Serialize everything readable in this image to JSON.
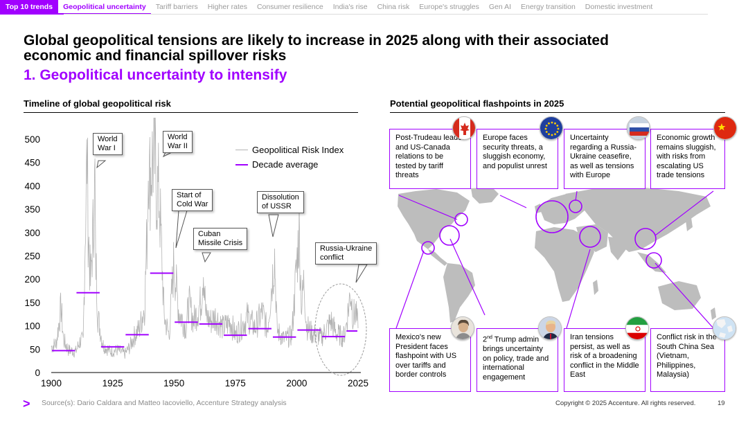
{
  "nav": {
    "items": [
      "Top 10 trends",
      "Geopolitical uncertainty",
      "Tariff barriers",
      "Higher rates",
      "Consumer resilience",
      "India's rise",
      "China risk",
      "Europe's struggles",
      "Gen AI",
      "Energy transition",
      "Domestic investment"
    ],
    "active": "Geopolitical uncertainty"
  },
  "header": {
    "title": "Global geopolitical tensions are likely to increase in 2025 along with their associated economic and financial spillover risks",
    "subtitle": "1. Geopolitical uncertainty to intensify"
  },
  "left_section": {
    "heading": "Timeline of global geopolitical risk"
  },
  "right_section": {
    "heading": "Potential geopolitical flashpoints in 2025"
  },
  "colors": {
    "accent": "#a100ff",
    "series_line": "#b3b3b3",
    "text": "#000000"
  },
  "chart_data": {
    "type": "line",
    "xlim": [
      1900,
      2025
    ],
    "ylim": [
      0,
      500
    ],
    "x_ticks": [
      "1900",
      "1925",
      "1950",
      "1975",
      "2000",
      "2025"
    ],
    "y_ticks": [
      "0",
      "50",
      "100",
      "150",
      "200",
      "250",
      "300",
      "350",
      "400",
      "450",
      "500"
    ],
    "series": [
      {
        "name": "Geopolitical Risk Index",
        "points": [
          [
            1900,
            55
          ],
          [
            1902,
            62
          ],
          [
            1904,
            140
          ],
          [
            1905,
            70
          ],
          [
            1907,
            48
          ],
          [
            1910,
            45
          ],
          [
            1912,
            70
          ],
          [
            1913,
            65
          ],
          [
            1914,
            340
          ],
          [
            1914.6,
            470
          ],
          [
            1915,
            320
          ],
          [
            1916,
            190
          ],
          [
            1917,
            300
          ],
          [
            1917.8,
            410
          ],
          [
            1918,
            260
          ],
          [
            1919,
            120
          ],
          [
            1921,
            60
          ],
          [
            1924,
            45
          ],
          [
            1927,
            48
          ],
          [
            1930,
            40
          ],
          [
            1932,
            55
          ],
          [
            1934,
            80
          ],
          [
            1936,
            95
          ],
          [
            1938,
            140
          ],
          [
            1939,
            290
          ],
          [
            1939.7,
            490
          ],
          [
            1940,
            410
          ],
          [
            1941,
            450
          ],
          [
            1942,
            470
          ],
          [
            1943,
            395
          ],
          [
            1944,
            380
          ],
          [
            1945,
            250
          ],
          [
            1946,
            120
          ],
          [
            1948,
            80
          ],
          [
            1950,
            240
          ],
          [
            1951,
            180
          ],
          [
            1952,
            130
          ],
          [
            1955,
            95
          ],
          [
            1956,
            150
          ],
          [
            1958,
            110
          ],
          [
            1961,
            150
          ],
          [
            1962,
            228
          ],
          [
            1963,
            120
          ],
          [
            1965,
            110
          ],
          [
            1967,
            120
          ],
          [
            1970,
            95
          ],
          [
            1973,
            110
          ],
          [
            1975,
            80
          ],
          [
            1979,
            110
          ],
          [
            1980,
            120
          ],
          [
            1983,
            95
          ],
          [
            1986,
            130
          ],
          [
            1988,
            90
          ],
          [
            1990,
            200
          ],
          [
            1991,
            252
          ],
          [
            1992,
            90
          ],
          [
            1995,
            70
          ],
          [
            1998,
            80
          ],
          [
            2001,
            305
          ],
          [
            2002,
            140
          ],
          [
            2003,
            200
          ],
          [
            2004,
            100
          ],
          [
            2006,
            85
          ],
          [
            2010,
            75
          ],
          [
            2014,
            110
          ],
          [
            2016,
            85
          ],
          [
            2019,
            75
          ],
          [
            2020,
            95
          ],
          [
            2022,
            175
          ],
          [
            2023,
            120
          ],
          [
            2024,
            130
          ],
          [
            2025,
            95
          ]
        ]
      },
      {
        "name": "Decade average",
        "segments": [
          [
            1900,
            1910,
            47
          ],
          [
            1910,
            1920,
            171
          ],
          [
            1920,
            1930,
            55
          ],
          [
            1930,
            1940,
            81
          ],
          [
            1940,
            1950,
            213
          ],
          [
            1950,
            1960,
            108
          ],
          [
            1960,
            1970,
            104
          ],
          [
            1970,
            1980,
            80
          ],
          [
            1980,
            1990,
            94
          ],
          [
            1990,
            2000,
            76
          ],
          [
            2000,
            2010,
            91
          ],
          [
            2010,
            2020,
            77
          ],
          [
            2020,
            2025,
            89
          ]
        ]
      }
    ],
    "annotations": [
      {
        "text": "World\nWar I"
      },
      {
        "text": "World\nWar II"
      },
      {
        "text": "Start of\nCold War"
      },
      {
        "text": "Cuban\nMissile Crisis"
      },
      {
        "text": "Dissolution\nof USSR"
      },
      {
        "text": "Russia-Ukraine\nconflict"
      }
    ]
  },
  "flashpoints": {
    "top": [
      {
        "text": "Post-Trudeau leader and US-Canada relations to be tested by tariff threats",
        "flag": "canada-flag-icon"
      },
      {
        "text": "Europe faces security threats, a sluggish economy, and populist unrest",
        "flag": "eu-flag-icon"
      },
      {
        "text": "Uncertainty regarding a Russia-Ukraine ceasefire, as well as tensions with Europe",
        "flag": "russia-flag-icon"
      },
      {
        "text": "Economic growth remains sluggish, with risks from escalating US trade tensions",
        "flag": "china-flag-icon"
      }
    ],
    "bottom": [
      {
        "text": "Mexico's new President faces flashpoint with US over tariffs and border controls",
        "flag": "mexico-president-portrait-icon"
      },
      {
        "text_sup": "nd",
        "text_pre": "2",
        "text": "Trump admin brings uncertainty on policy, trade and international engagement",
        "flag": "us-president-portrait-icon"
      },
      {
        "text": "Iran tensions persist, as well as risk of a broadening conflict in the Middle East",
        "flag": "iran-flag-icon"
      },
      {
        "text": "Conflict risk in the South China Sea (Vietnam, Philippines, Malaysia)",
        "flag": "south-china-sea-map-icon"
      }
    ]
  },
  "footer": {
    "source": "Source(s): Dario Caldara and Matteo Iacoviello, Accenture Strategy analysis",
    "copyright": "Copyright © 2025 Accenture. All rights reserved.",
    "page": "19",
    "logo": ">"
  }
}
